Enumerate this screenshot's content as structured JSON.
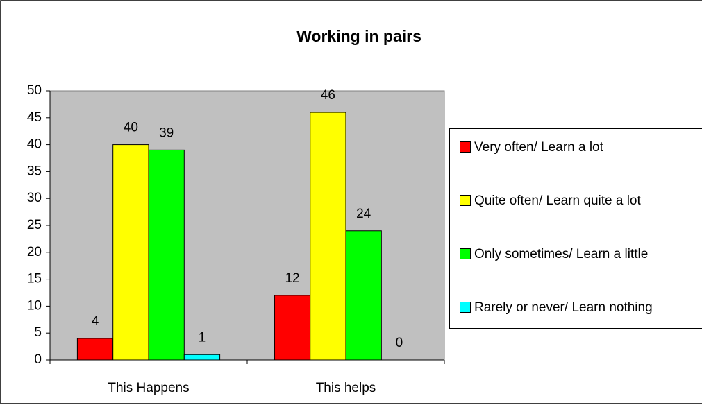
{
  "chart_data": {
    "type": "bar",
    "title": "Working in pairs",
    "categories": [
      "This Happens",
      "This helps"
    ],
    "series": [
      {
        "name": "Very often/ Learn a lot",
        "color": "#ff0000",
        "values": [
          4,
          12
        ]
      },
      {
        "name": "Quite often/ Learn quite a lot",
        "color": "#ffff00",
        "values": [
          40,
          46
        ]
      },
      {
        "name": "Only sometimes/ Learn a little",
        "color": "#00ff00",
        "values": [
          39,
          24
        ]
      },
      {
        "name": "Rarely or never/ Learn nothing",
        "color": "#00ffff",
        "values": [
          1,
          0
        ]
      }
    ],
    "ylim": [
      0,
      50
    ],
    "yticks": [
      0,
      5,
      10,
      15,
      20,
      25,
      30,
      35,
      40,
      45,
      50
    ],
    "legend": "right",
    "plot_background": "#c0c0c0"
  }
}
